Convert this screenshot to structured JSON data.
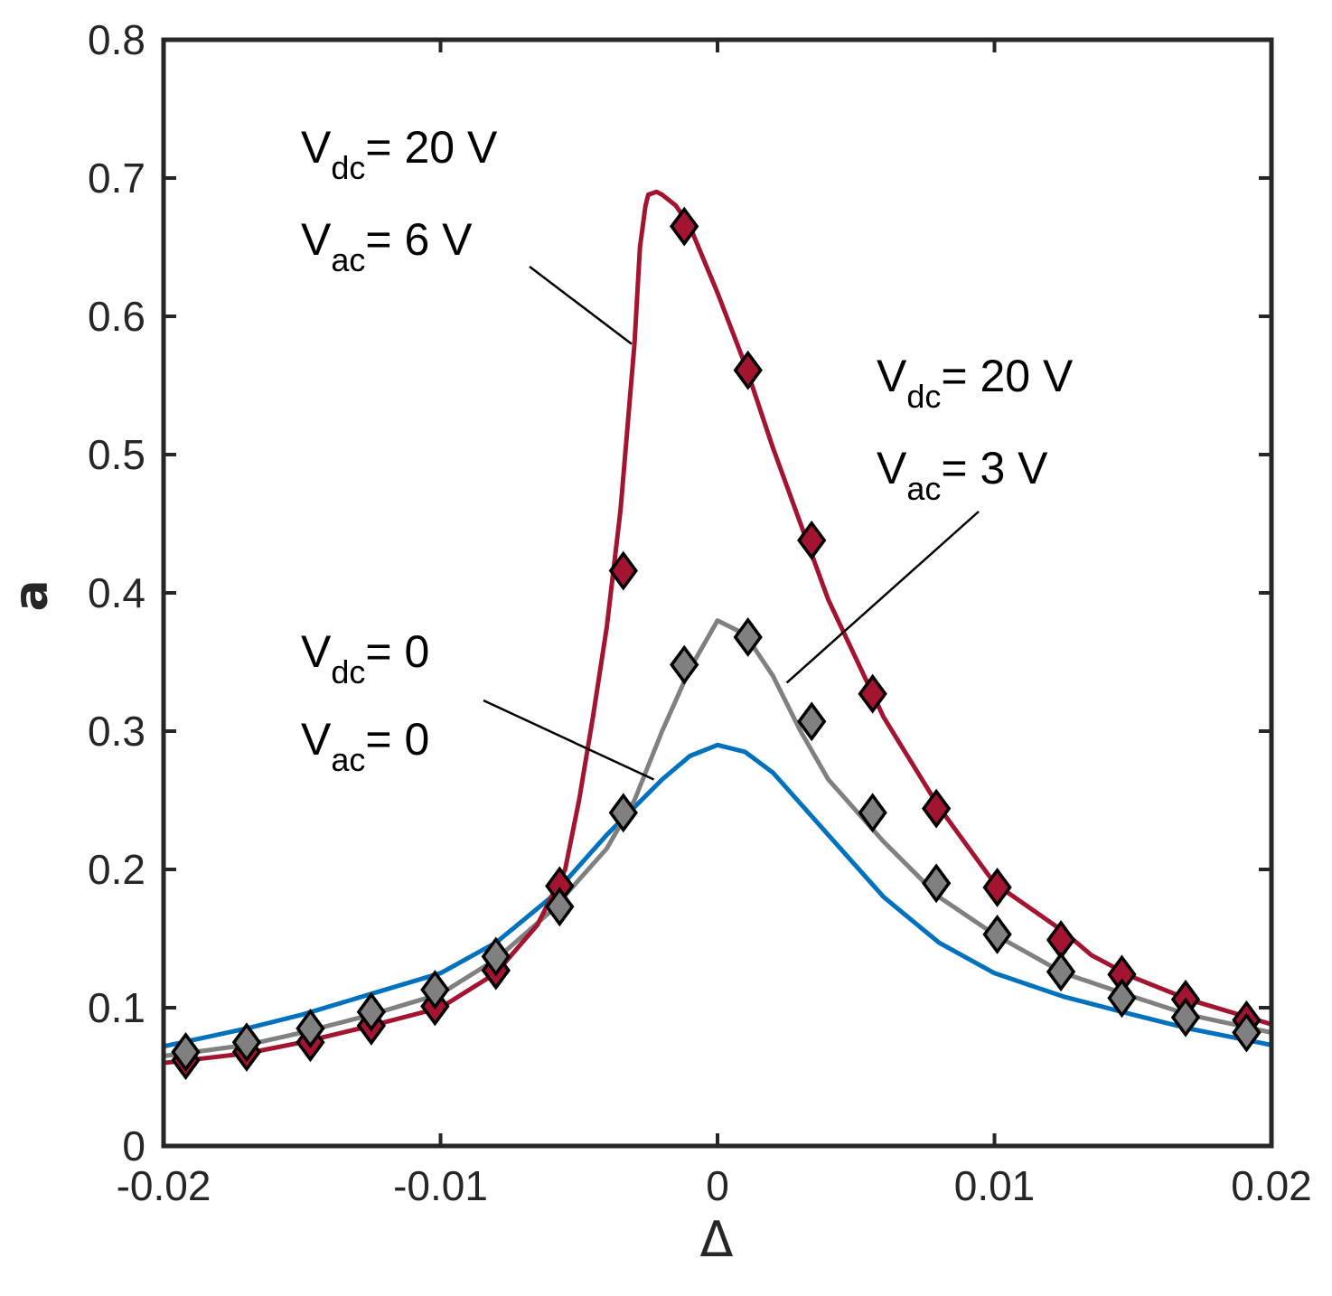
{
  "chart_data": {
    "type": "line",
    "title": "",
    "xlabel": "Δ",
    "ylabel": "a",
    "xlim": [
      -0.02,
      0.02
    ],
    "ylim": [
      0,
      0.8
    ],
    "grid": false,
    "x_ticks": [
      -0.02,
      -0.01,
      0,
      0.01,
      0.02
    ],
    "x_tick_labels": [
      "-0.02",
      "-0.01",
      "0",
      "0.01",
      "0.02"
    ],
    "y_ticks": [
      0,
      0.1,
      0.2,
      0.3,
      0.4,
      0.5,
      0.6,
      0.7,
      0.8
    ],
    "y_tick_labels": [
      "0",
      "0.1",
      "0.2",
      "0.3",
      "0.4",
      "0.5",
      "0.6",
      "0.7",
      "0.8"
    ],
    "series": [
      {
        "name": "Vdc=0, Vac=0",
        "color": "#0072bd",
        "line": {
          "x": [
            -0.02,
            -0.017,
            -0.015,
            -0.0125,
            -0.01,
            -0.008,
            -0.006,
            -0.004,
            -0.002,
            -0.001,
            0,
            0.001,
            0.002,
            0.004,
            0.006,
            0.008,
            0.01,
            0.0125,
            0.015,
            0.017,
            0.02
          ],
          "y": [
            0.072,
            0.085,
            0.095,
            0.11,
            0.125,
            0.147,
            0.18,
            0.225,
            0.265,
            0.282,
            0.29,
            0.285,
            0.27,
            0.225,
            0.18,
            0.147,
            0.125,
            0.108,
            0.095,
            0.085,
            0.073
          ]
        },
        "markers": null
      },
      {
        "name": "Vdc=20 V, Vac=3 V",
        "color": "#808080",
        "line": {
          "x": [
            -0.02,
            -0.017,
            -0.015,
            -0.0125,
            -0.01,
            -0.008,
            -0.006,
            -0.004,
            -0.003,
            -0.002,
            -0.001,
            0,
            0.001,
            0.002,
            0.003,
            0.004,
            0.006,
            0.008,
            0.01,
            0.0125,
            0.015,
            0.017,
            0.02
          ],
          "y": [
            0.065,
            0.073,
            0.082,
            0.095,
            0.11,
            0.135,
            0.17,
            0.215,
            0.25,
            0.3,
            0.345,
            0.38,
            0.37,
            0.34,
            0.3,
            0.265,
            0.22,
            0.18,
            0.153,
            0.125,
            0.108,
            0.095,
            0.082
          ]
        },
        "markers": {
          "x": [
            -0.0192,
            -0.017,
            -0.0147,
            -0.0125,
            -0.0102,
            -0.008,
            -0.0057,
            -0.0034,
            -0.0012,
            0.0011,
            0.0034,
            0.0056,
            0.0079,
            0.0101,
            0.0124,
            0.0146,
            0.0169,
            0.0191
          ],
          "y": [
            0.068,
            0.075,
            0.085,
            0.097,
            0.113,
            0.137,
            0.173,
            0.241,
            0.348,
            0.368,
            0.307,
            0.241,
            0.19,
            0.153,
            0.126,
            0.107,
            0.093,
            0.082
          ]
        }
      },
      {
        "name": "Vdc=20 V, Vac=6 V",
        "color": "#a2142f",
        "line": {
          "x": [
            -0.02,
            -0.017,
            -0.015,
            -0.0125,
            -0.01,
            -0.008,
            -0.0065,
            -0.0055,
            -0.005,
            -0.0045,
            -0.004,
            -0.0035,
            -0.003,
            -0.0028,
            -0.0026,
            -0.0025,
            -0.0022,
            -0.002,
            -0.0015,
            -0.001,
            0,
            0.001,
            0.002,
            0.003,
            0.004,
            0.006,
            0.008,
            0.01,
            0.0125,
            0.0135,
            0.015,
            0.017,
            0.02
          ],
          "y": [
            0.06,
            0.067,
            0.075,
            0.087,
            0.1,
            0.125,
            0.16,
            0.2,
            0.25,
            0.31,
            0.375,
            0.46,
            0.58,
            0.65,
            0.68,
            0.688,
            0.69,
            0.688,
            0.68,
            0.665,
            0.617,
            0.565,
            0.505,
            0.45,
            0.395,
            0.31,
            0.245,
            0.19,
            0.155,
            0.138,
            0.122,
            0.106,
            0.088
          ]
        },
        "markers": {
          "x": [
            -0.0192,
            -0.017,
            -0.0147,
            -0.0125,
            -0.0102,
            -0.008,
            -0.0057,
            -0.0034,
            -0.0012,
            0.0011,
            0.0034,
            0.0056,
            0.0079,
            0.0101,
            0.0124,
            0.0146,
            0.0169,
            0.0191
          ],
          "y": [
            0.062,
            0.068,
            0.075,
            0.087,
            0.101,
            0.127,
            0.188,
            0.416,
            0.665,
            0.561,
            0.438,
            0.327,
            0.244,
            0.187,
            0.149,
            0.124,
            0.106,
            0.091
          ]
        }
      }
    ],
    "annotations": [
      {
        "name": "dc0",
        "line1_main": "V",
        "line1_sub": "dc",
        "line1_rest": "= 0",
        "line2_main": "V",
        "line2_sub": "ac",
        "line2_rest": "= 0"
      },
      {
        "name": "dc20-ac3",
        "line1_main": "V",
        "line1_sub": "dc",
        "line1_rest": "= 20 V",
        "line2_main": "V",
        "line2_sub": "ac",
        "line2_rest": "= 3 V"
      },
      {
        "name": "dc20-ac6",
        "line1_main": "V",
        "line1_sub": "dc",
        "line1_rest": "= 20 V",
        "line2_main": "V",
        "line2_sub": "ac",
        "line2_rest": "= 6 V"
      }
    ]
  }
}
